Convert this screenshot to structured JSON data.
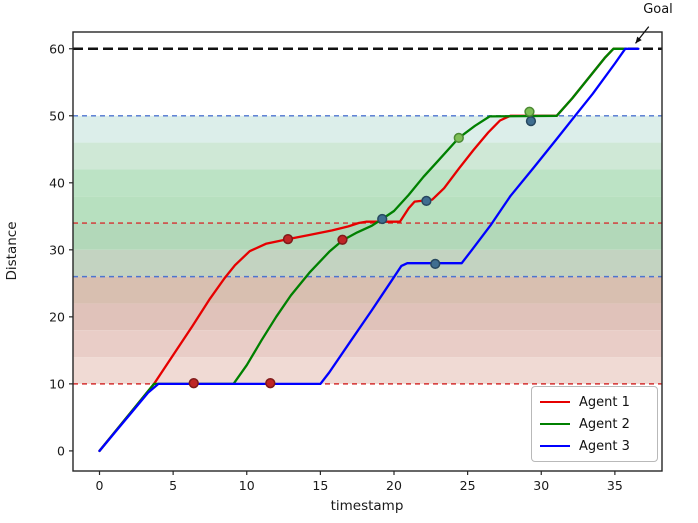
{
  "figure": {
    "goal_annotation": "Goal"
  },
  "chart_data": {
    "type": "line",
    "title": "",
    "xlabel": "timestamp",
    "ylabel": "Distance",
    "xlim": [
      -1.8,
      38.2
    ],
    "ylim": [
      -3,
      62.5
    ],
    "xticks": [
      0,
      5,
      10,
      15,
      20,
      25,
      30,
      35
    ],
    "yticks": [
      0,
      10,
      20,
      30,
      40,
      50,
      60
    ],
    "grid": false,
    "legend_position": "lower right",
    "legend_labels": [
      "Agent 1",
      "Agent 2",
      "Agent 3"
    ],
    "series": [
      {
        "name": "Agent 1",
        "color": "#e60000",
        "points": [
          [
            0,
            0
          ],
          [
            3.7,
            10
          ],
          [
            5,
            14.3
          ],
          [
            6.3,
            18.6
          ],
          [
            7.5,
            22.7
          ],
          [
            8.5,
            25.8
          ],
          [
            9.2,
            27.7
          ],
          [
            10.2,
            29.8
          ],
          [
            11.3,
            30.9
          ],
          [
            12.8,
            31.6
          ],
          [
            14.2,
            32.2
          ],
          [
            15.8,
            32.9
          ],
          [
            16.9,
            33.5
          ],
          [
            17.6,
            34.0
          ],
          [
            18.1,
            34.2
          ],
          [
            20.4,
            34.2
          ],
          [
            21.0,
            36.2
          ],
          [
            21.4,
            37.2
          ],
          [
            22.6,
            37.5
          ],
          [
            23.4,
            39.2
          ],
          [
            24.4,
            42.1
          ],
          [
            25.4,
            44.9
          ],
          [
            26.4,
            47.5
          ],
          [
            27.2,
            49.3
          ],
          [
            27.9,
            50
          ],
          [
            31.05,
            50
          ],
          [
            32.1,
            52.6
          ],
          [
            34.3,
            58.6
          ],
          [
            34.9,
            60
          ],
          [
            35.75,
            60
          ]
        ]
      },
      {
        "name": "Agent 2",
        "color": "#008000",
        "points": [
          [
            0,
            0
          ],
          [
            3.7,
            10
          ],
          [
            9.1,
            10
          ],
          [
            10,
            12.8
          ],
          [
            11,
            16.5
          ],
          [
            12,
            20
          ],
          [
            13,
            23.2
          ],
          [
            14.3,
            26.7
          ],
          [
            15.6,
            29.7
          ],
          [
            16.5,
            31.4
          ],
          [
            17.5,
            32.6
          ],
          [
            18.5,
            33.6
          ],
          [
            19.2,
            34.6
          ],
          [
            20,
            35.8
          ],
          [
            21,
            38.2
          ],
          [
            22,
            40.9
          ],
          [
            23,
            43.3
          ],
          [
            24.4,
            46.7
          ],
          [
            25.5,
            48.5
          ],
          [
            26.5,
            49.9
          ],
          [
            31.05,
            50
          ],
          [
            32.1,
            52.6
          ],
          [
            34.3,
            58.6
          ],
          [
            34.9,
            60
          ],
          [
            35.75,
            60
          ]
        ]
      },
      {
        "name": "Agent 3",
        "color": "#0000ff",
        "points": [
          [
            0,
            0
          ],
          [
            3.3,
            8.7
          ],
          [
            4.0,
            10
          ],
          [
            15.0,
            10
          ],
          [
            15.6,
            11.7
          ],
          [
            17,
            16.2
          ],
          [
            18.5,
            21
          ],
          [
            19.9,
            25.6
          ],
          [
            20.5,
            27.6
          ],
          [
            20.9,
            28
          ],
          [
            24.6,
            28
          ],
          [
            25.3,
            30
          ],
          [
            26.6,
            33.8
          ],
          [
            27.9,
            38
          ],
          [
            29.5,
            42.3
          ],
          [
            31,
            46.4
          ],
          [
            32.3,
            50
          ],
          [
            33.5,
            53.3
          ],
          [
            35.0,
            57.8
          ],
          [
            35.7,
            60
          ],
          [
            36.6,
            60
          ]
        ]
      }
    ],
    "threshold_lines": [
      {
        "y": 60,
        "color": "#111111",
        "style": "dashed",
        "width": 2.5,
        "dash": "10 5",
        "name": "goal-line"
      },
      {
        "y": 50,
        "color": "#4d74d0",
        "style": "dashed",
        "width": 1.4,
        "dash": "5 4",
        "name": "checkpoint-50"
      },
      {
        "y": 34,
        "color": "#d43030",
        "style": "dashed",
        "width": 1.4,
        "dash": "5 4",
        "name": "checkpoint-34"
      },
      {
        "y": 26,
        "color": "#4d74d0",
        "style": "dashed",
        "width": 1.4,
        "dash": "5 4",
        "name": "checkpoint-26"
      },
      {
        "y": 10,
        "color": "#d43030",
        "style": "dashed",
        "width": 1.4,
        "dash": "5 4",
        "name": "checkpoint-10"
      }
    ],
    "bands": [
      {
        "y_top": 50,
        "y_bottom": 46,
        "color": "#dceeea"
      },
      {
        "y_top": 46,
        "y_bottom": 42,
        "color": "#cfe8d6"
      },
      {
        "y_top": 42,
        "y_bottom": 38,
        "color": "#bce3c5"
      },
      {
        "y_top": 38,
        "y_bottom": 34,
        "color": "#b7e0bf"
      },
      {
        "y_top": 34,
        "y_bottom": 30,
        "color": "#b2d8b9"
      },
      {
        "y_top": 30,
        "y_bottom": 26,
        "color": "#c3d3c1"
      },
      {
        "y_top": 26,
        "y_bottom": 22,
        "color": "#d8bfb0"
      },
      {
        "y_top": 22,
        "y_bottom": 18,
        "color": "#e0c2ba"
      },
      {
        "y_top": 18,
        "y_bottom": 14,
        "color": "#e9cdc7"
      },
      {
        "y_top": 14,
        "y_bottom": 10,
        "color": "#f0dad4"
      }
    ],
    "event_markers": [
      {
        "x": 6.4,
        "y": 10.1,
        "fill": "#bf2626",
        "edge": "#801a1a"
      },
      {
        "x": 11.6,
        "y": 10.1,
        "fill": "#bf2626",
        "edge": "#801a1a"
      },
      {
        "x": 12.8,
        "y": 31.6,
        "fill": "#bf2626",
        "edge": "#801a1a"
      },
      {
        "x": 16.5,
        "y": 31.5,
        "fill": "#bf2626",
        "edge": "#801a1a"
      },
      {
        "x": 19.2,
        "y": 34.6,
        "fill": "#3f6e90",
        "edge": "#27485f"
      },
      {
        "x": 22.2,
        "y": 37.3,
        "fill": "#3f6e90",
        "edge": "#27485f"
      },
      {
        "x": 22.8,
        "y": 27.9,
        "fill": "#3f6e90",
        "edge": "#27485f"
      },
      {
        "x": 29.3,
        "y": 49.2,
        "fill": "#3f6e90",
        "edge": "#27485f"
      },
      {
        "x": 24.4,
        "y": 46.7,
        "fill": "#7fbf57",
        "edge": "#4c8a33"
      },
      {
        "x": 29.2,
        "y": 50.6,
        "fill": "#7fbf57",
        "edge": "#4c8a33"
      }
    ],
    "annotation": {
      "text": "Goal",
      "tail_x": 37.3,
      "tail_y": 63.3,
      "tip_x": 36.4,
      "tip_y": 60.8
    }
  }
}
